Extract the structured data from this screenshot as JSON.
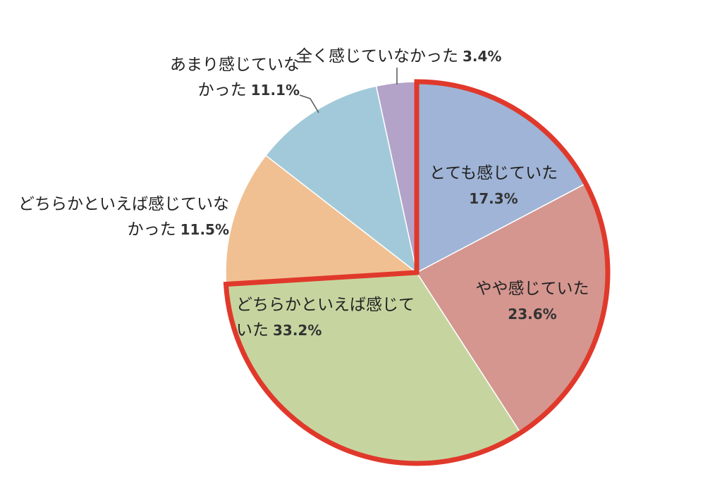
{
  "chart_data": {
    "type": "pie",
    "categories": [
      "とても感じていた",
      "やや感じていた",
      "どちらかといえば感じていた",
      "どちらかといえば感じていなかった",
      "あまり感じていなかった",
      "全く感じていなかった"
    ],
    "values": [
      17.3,
      23.6,
      33.2,
      11.5,
      11.1,
      3.4
    ],
    "value_labels": [
      "17.3%",
      "23.6%",
      "33.2%",
      "11.5%",
      "11.1%",
      "3.4%"
    ],
    "colors": [
      "#9fb4d6",
      "#d4968f",
      "#c6d59f",
      "#f0c092",
      "#a1c9d9",
      "#b4a3c8"
    ],
    "highlight": {
      "color": "#e0392b",
      "categories": [
        0,
        1,
        2
      ]
    }
  }
}
